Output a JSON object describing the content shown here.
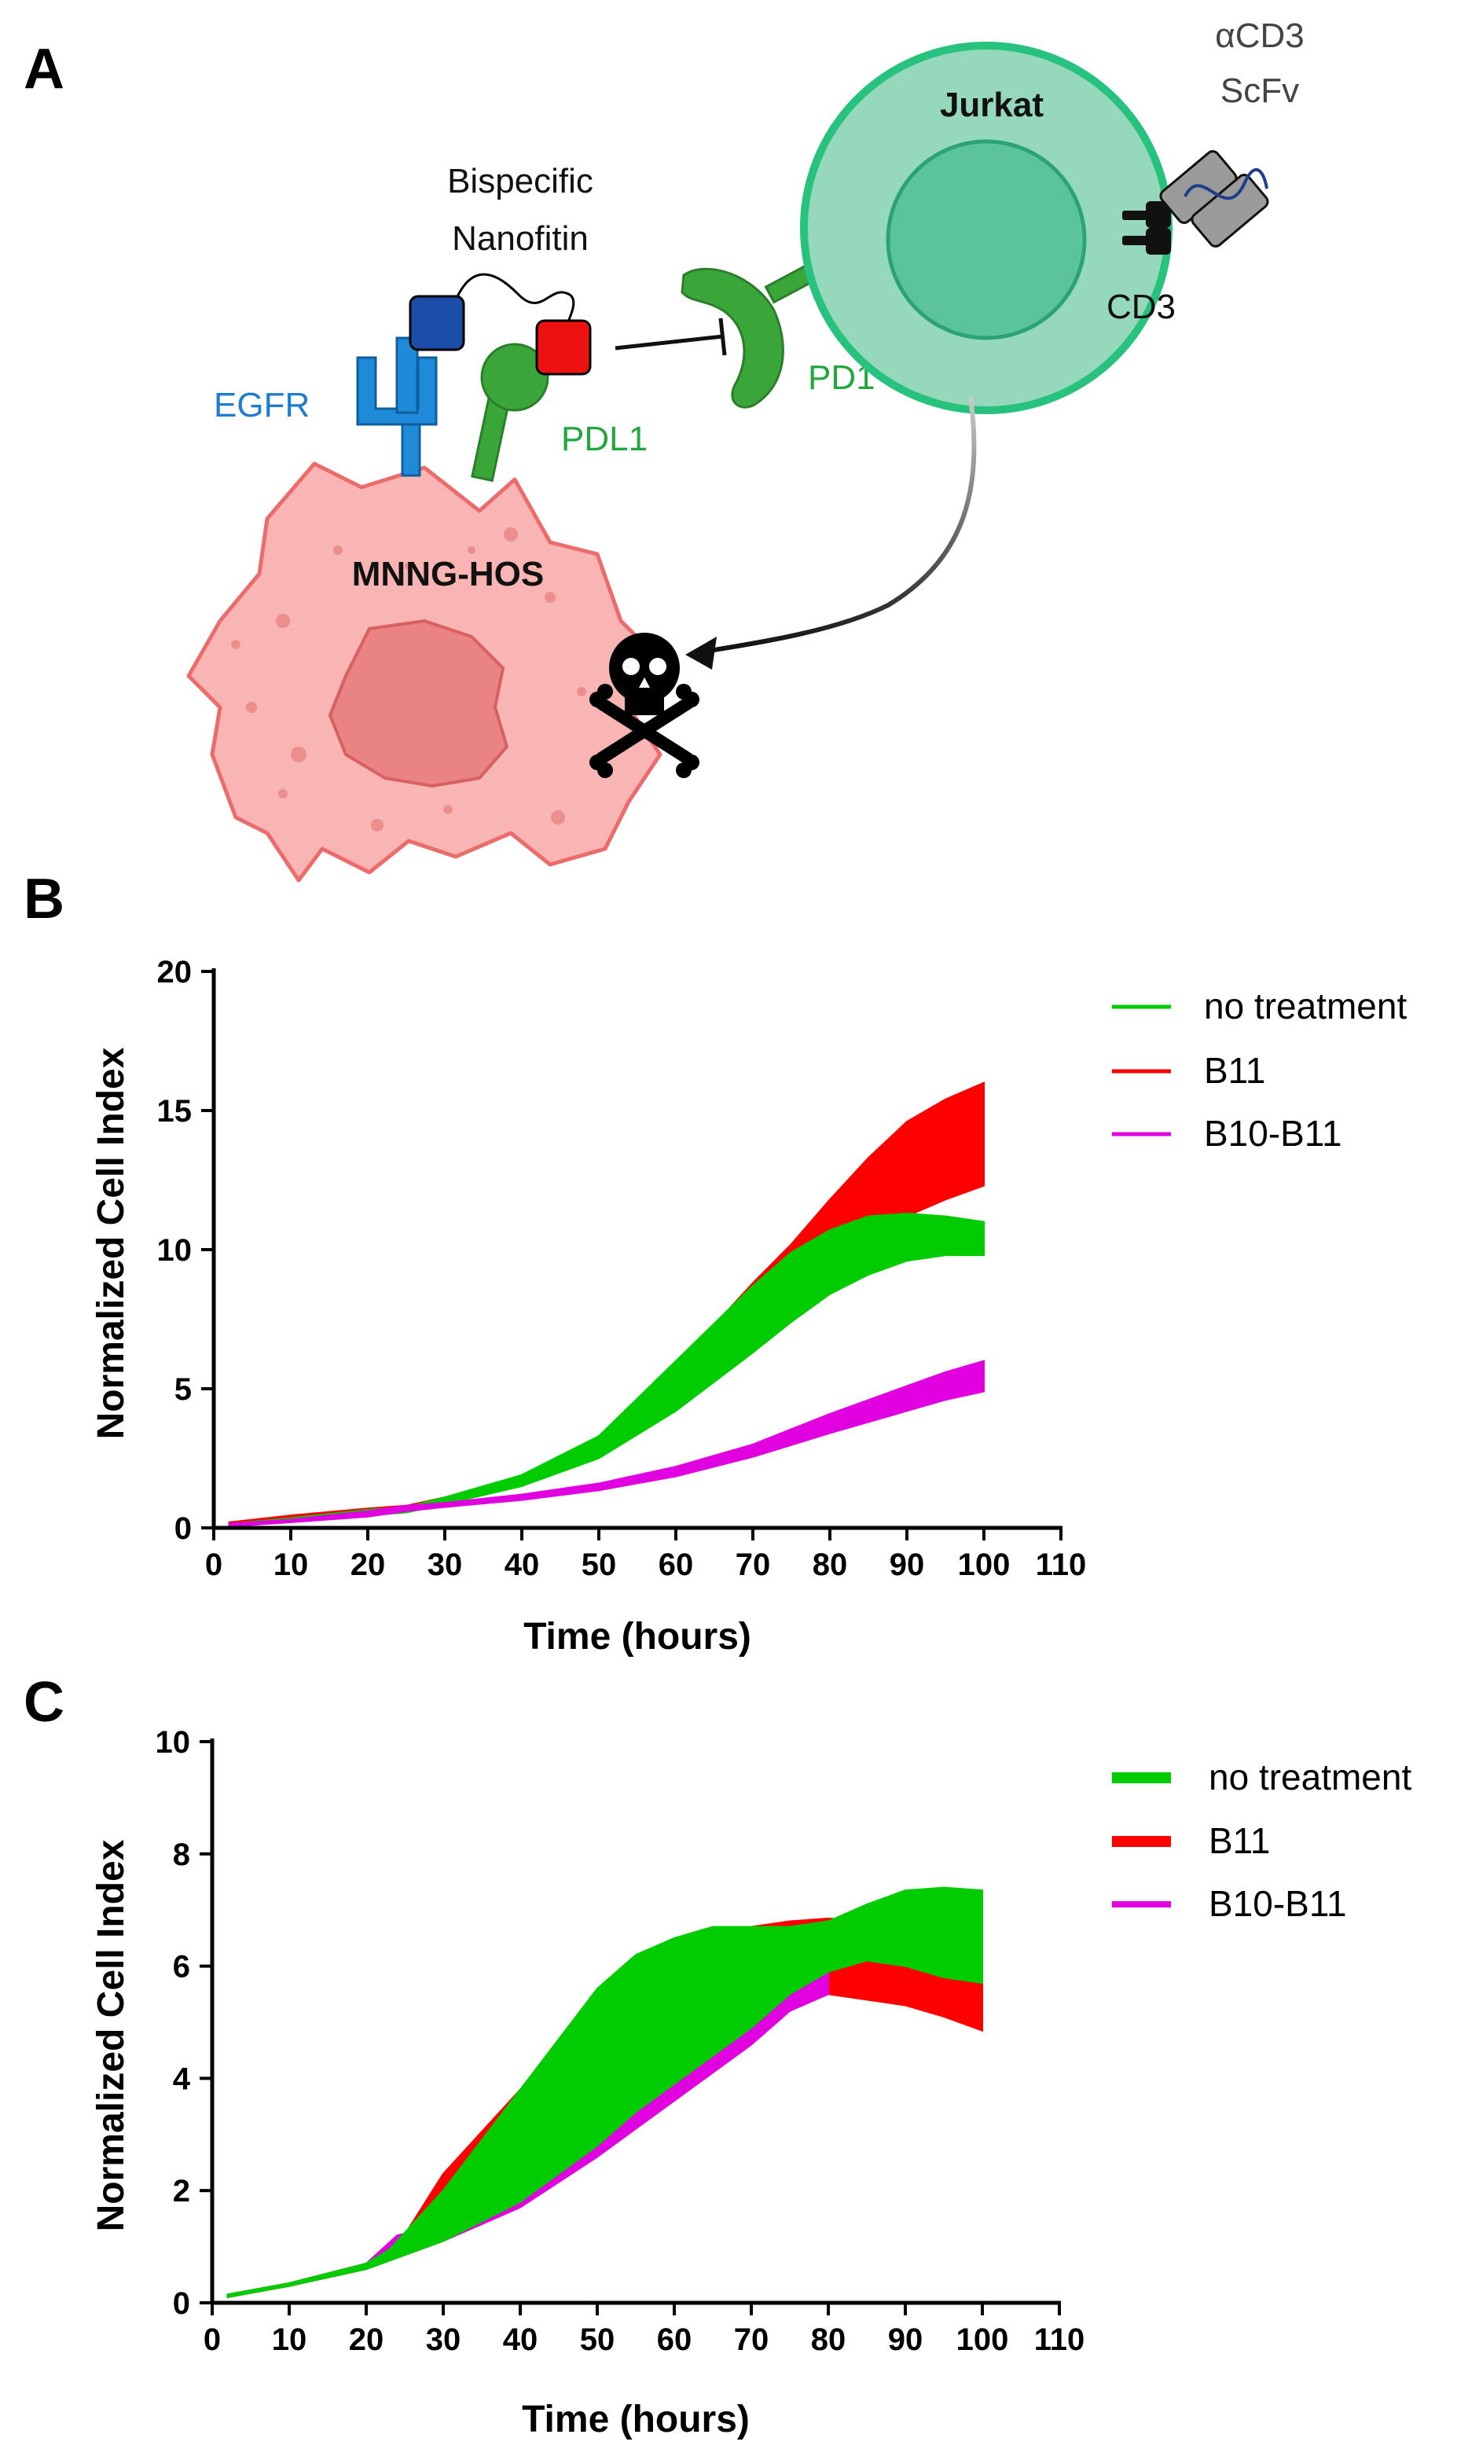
{
  "panels": {
    "a": "A",
    "b": "B",
    "c": "C"
  },
  "diagram": {
    "bispecific_line1": "Bispecific",
    "bispecific_line2": "Nanofitin",
    "egfr": "EGFR",
    "pdl1": "PDL1",
    "pd1": "PD1",
    "jurkat": "Jurkat",
    "cd3": "CD3",
    "acd3_line1": "αCD3",
    "acd3_line2": "ScFv",
    "mnng": "MNNG-HOS",
    "colors": {
      "egfr": "#1e8ad8",
      "pdl1": "#3aa63a",
      "tumor_fill": "#f8b5b3",
      "tumor_stroke": "#ec6b6b",
      "jurkat_fill": "#96d8bb",
      "jurkat_stroke": "#27c27e",
      "linker_blue": "#1a4ea8",
      "linker_red": "#ee1111"
    }
  },
  "chart_data": [
    {
      "id": "panel-b",
      "type": "line",
      "title": "",
      "xlabel": "Time (hours)",
      "ylabel": "Normalized Cell Index",
      "xlim": [
        0,
        110
      ],
      "ylim": [
        0,
        20
      ],
      "xticks": [
        0,
        10,
        20,
        30,
        40,
        50,
        60,
        70,
        80,
        90,
        100,
        110
      ],
      "yticks": [
        0,
        5,
        10,
        15,
        20
      ],
      "legend": "right",
      "series": [
        {
          "name": "B11",
          "color": "#ff0000",
          "x": [
            2,
            10,
            20,
            25,
            30,
            40,
            50,
            60,
            70,
            75,
            80,
            85,
            90,
            95,
            100
          ],
          "lower": [
            0.1,
            0.3,
            0.5,
            0.6,
            0.9,
            1.5,
            2.6,
            4.6,
            7.1,
            8.4,
            9.5,
            10.5,
            11.2,
            11.8,
            12.3
          ],
          "upper": [
            0.2,
            0.45,
            0.7,
            0.8,
            1.1,
            1.8,
            3.2,
            5.8,
            8.8,
            10.2,
            11.8,
            13.3,
            14.6,
            15.4,
            16.0
          ]
        },
        {
          "name": "no treatment",
          "color": "#00cc00",
          "x": [
            2,
            10,
            20,
            25,
            30,
            40,
            50,
            60,
            70,
            75,
            80,
            85,
            90,
            95,
            100
          ],
          "lower": [
            0.05,
            0.2,
            0.45,
            0.55,
            0.85,
            1.5,
            2.5,
            4.2,
            6.3,
            7.4,
            8.4,
            9.1,
            9.6,
            9.8,
            9.8
          ],
          "upper": [
            0.15,
            0.35,
            0.65,
            0.75,
            1.1,
            1.9,
            3.3,
            6.0,
            8.7,
            9.9,
            10.7,
            11.2,
            11.3,
            11.2,
            11.0
          ]
        },
        {
          "name": "B10-B11",
          "color": "#e000e0",
          "x": [
            2,
            10,
            20,
            25,
            30,
            40,
            50,
            60,
            70,
            80,
            90,
            95,
            100
          ],
          "lower": [
            0.05,
            0.2,
            0.4,
            0.6,
            0.75,
            1.0,
            1.35,
            1.85,
            2.55,
            3.4,
            4.2,
            4.6,
            4.9
          ],
          "upper": [
            0.15,
            0.3,
            0.6,
            0.8,
            0.9,
            1.2,
            1.6,
            2.2,
            3.0,
            4.1,
            5.1,
            5.6,
            6.0
          ]
        }
      ]
    },
    {
      "id": "panel-c",
      "type": "line",
      "title": "",
      "xlabel": "Time (hours)",
      "ylabel": "Normalized Cell Index",
      "xlim": [
        0,
        110
      ],
      "ylim": [
        0,
        10
      ],
      "xticks": [
        0,
        10,
        20,
        30,
        40,
        50,
        60,
        70,
        80,
        90,
        100,
        110
      ],
      "yticks": [
        0,
        2,
        4,
        6,
        8,
        10
      ],
      "legend": "right",
      "series": [
        {
          "name": "B11",
          "color": "#ff0000",
          "x": [
            2,
            10,
            20,
            24,
            30,
            40,
            50,
            60,
            70,
            75,
            80,
            85,
            90,
            95,
            100
          ],
          "lower": [
            0.1,
            0.3,
            0.6,
            0.9,
            1.8,
            3.0,
            4.2,
            5.0,
            5.4,
            5.5,
            5.5,
            5.4,
            5.3,
            5.1,
            4.85
          ],
          "upper": [
            0.15,
            0.35,
            0.7,
            1.0,
            2.3,
            3.8,
            5.2,
            6.1,
            6.7,
            6.8,
            6.85,
            6.8,
            6.7,
            6.4,
            6.3
          ]
        },
        {
          "name": "B10-B11",
          "color": "#e000e0",
          "x": [
            2,
            10,
            20,
            24,
            30,
            40,
            50,
            60,
            70,
            75,
            80
          ],
          "lower": [
            0.1,
            0.3,
            0.6,
            0.8,
            1.1,
            1.7,
            2.6,
            3.6,
            4.6,
            5.2,
            5.5
          ],
          "upper": [
            0.15,
            0.35,
            0.7,
            1.2,
            1.4,
            2.0,
            3.0,
            4.1,
            5.2,
            5.7,
            5.9
          ]
        },
        {
          "name": "no treatment",
          "color": "#00cc00",
          "x": [
            2,
            10,
            20,
            23,
            30,
            40,
            50,
            55,
            60,
            65,
            70,
            75,
            80,
            85,
            90,
            95,
            100
          ],
          "lower": [
            0.1,
            0.3,
            0.6,
            0.75,
            1.1,
            1.8,
            2.8,
            3.4,
            3.9,
            4.4,
            4.9,
            5.5,
            5.9,
            6.1,
            6.0,
            5.8,
            5.7
          ],
          "upper": [
            0.15,
            0.35,
            0.7,
            0.95,
            2.0,
            3.8,
            5.6,
            6.2,
            6.5,
            6.7,
            6.7,
            6.7,
            6.8,
            7.1,
            7.35,
            7.4,
            7.35
          ]
        }
      ]
    }
  ]
}
